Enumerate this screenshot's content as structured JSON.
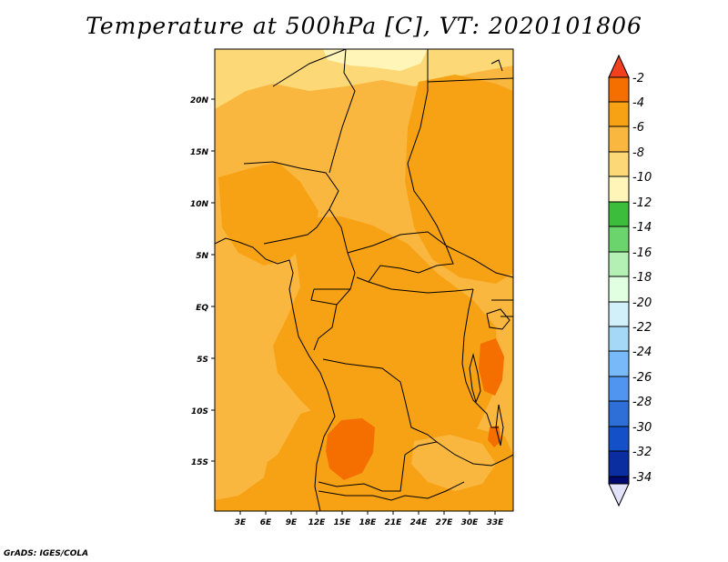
{
  "title": "Temperature at 500hPa [C], VT: 2020101806",
  "credit": "GrADS: IGES/COLA",
  "map": {
    "region": "Central Africa",
    "lat_ticks": [
      "20N",
      "15N",
      "10N",
      "5N",
      "EQ",
      "5S",
      "10S",
      "15S"
    ],
    "lon_ticks": [
      "3E",
      "6E",
      "9E",
      "12E",
      "15E",
      "18E",
      "21E",
      "24E",
      "27E",
      "30E",
      "33E"
    ],
    "lat_values": [
      20,
      15,
      10,
      5,
      0,
      -5,
      -10,
      -15
    ],
    "lon_values": [
      3,
      6,
      9,
      12,
      15,
      18,
      21,
      24,
      27,
      30,
      33
    ]
  },
  "colorbar": {
    "labels": [
      "-2",
      "-4",
      "-6",
      "-8",
      "-10",
      "-12",
      "-14",
      "-16",
      "-18",
      "-20",
      "-22",
      "-24",
      "-26",
      "-28",
      "-30",
      "-32",
      "-34"
    ],
    "colors": {
      "gt_-2": "#f0401e",
      "-4_-2": "#f56f00",
      "-6_-4": "#f7a214",
      "-8_-6": "#fab740",
      "-10_-8": "#fcd876",
      "-12_-10": "#fff5b9",
      "-14_-12": "#3cbe3c",
      "-16_-14": "#6cd46c",
      "-18_-16": "#b4f0b4",
      "-20_-18": "#e1ffe1",
      "-22_-20": "#d2f0fa",
      "-24_-22": "#a5d7f7",
      "-26_-24": "#78b9fa",
      "-28_-26": "#5096f0",
      "-30_-28": "#2d6ed7",
      "-32_-30": "#1450c8",
      "-34_-32": "#0a2da0",
      "lt_-34": "#000a6e",
      "below_min": "#e1e1fa"
    }
  }
}
